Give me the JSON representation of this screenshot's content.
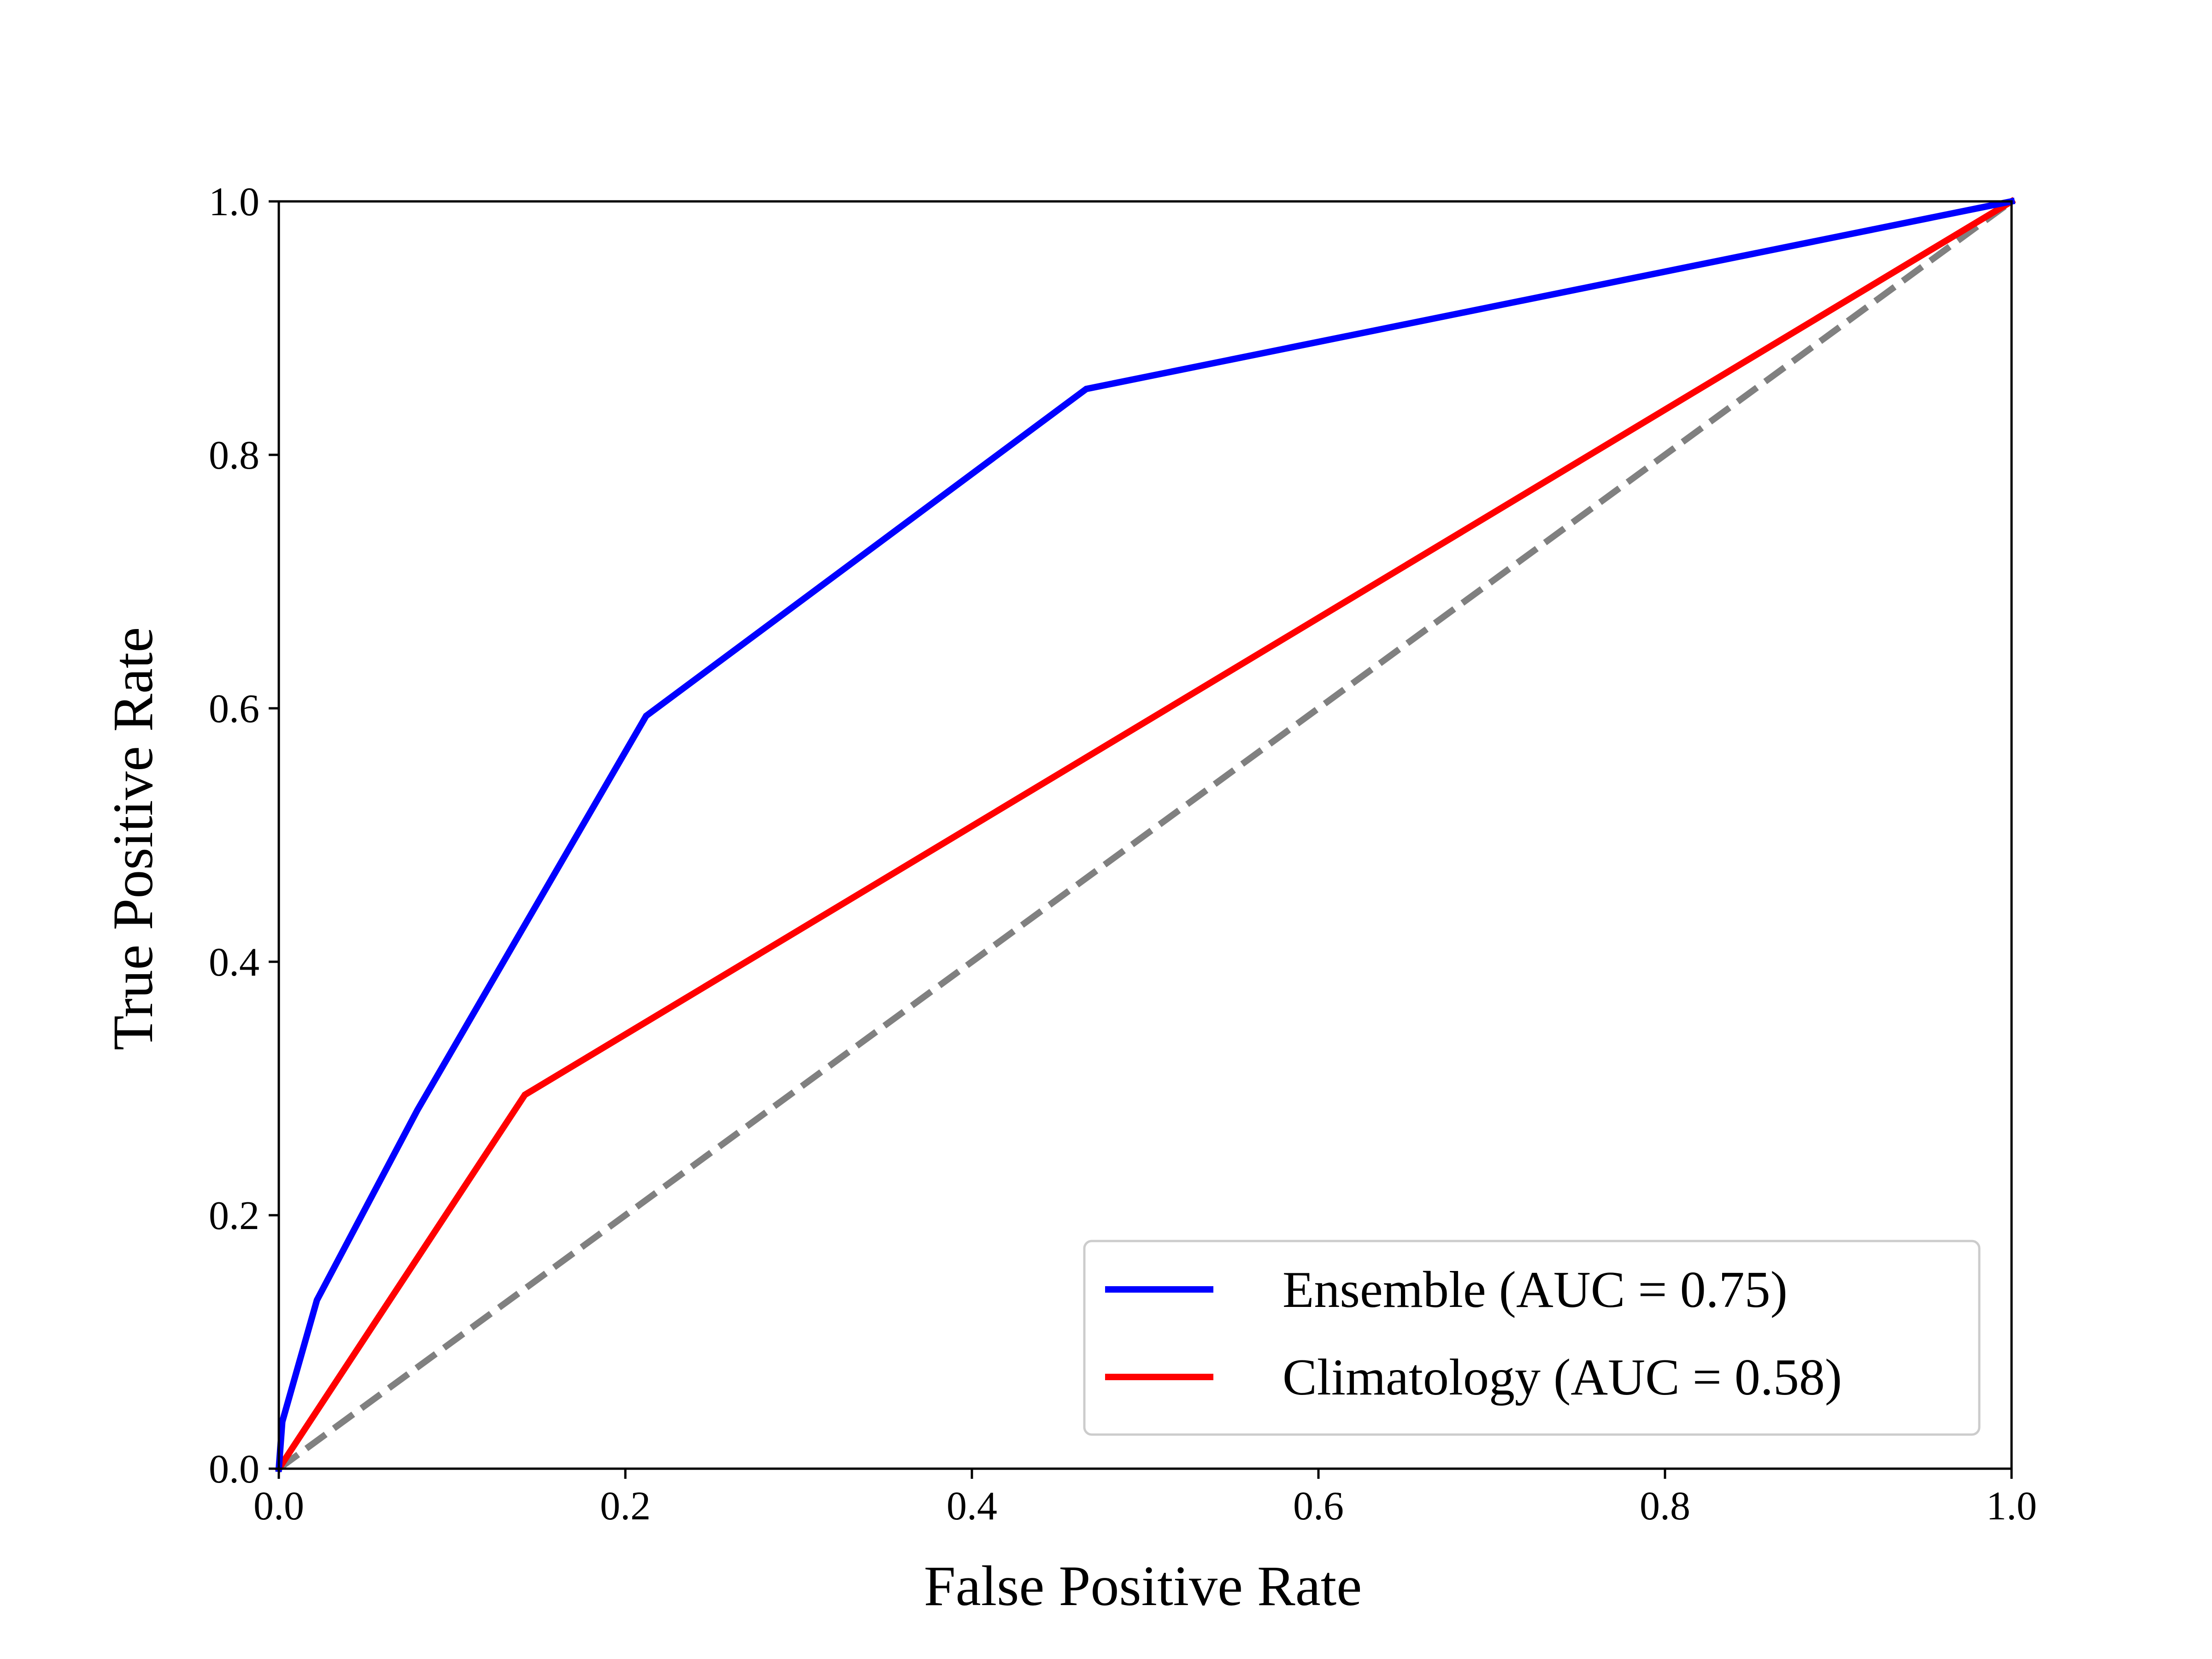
{
  "chart_data": {
    "type": "line",
    "title": "",
    "xlabel": "False Positive Rate",
    "ylabel": "True Positive Rate",
    "xlim": [
      0.0,
      1.0
    ],
    "ylim": [
      0.0,
      1.0
    ],
    "xticks": [
      "0.0",
      "0.2",
      "0.4",
      "0.6",
      "0.8",
      "1.0"
    ],
    "yticks": [
      "0.0",
      "0.2",
      "0.4",
      "0.6",
      "0.8",
      "1.0"
    ],
    "grid": false,
    "legend_position": "lower-right",
    "series": [
      {
        "name": "Ensemble (AUC = 0.75)",
        "color": "#0000ff",
        "style": "solid",
        "x": [
          0.0,
          0.002,
          0.022,
          0.08,
          0.212,
          0.466,
          1.0
        ],
        "y": [
          0.0,
          0.037,
          0.133,
          0.283,
          0.594,
          0.852,
          1.0
        ]
      },
      {
        "name": "Climatology (AUC = 0.58)",
        "color": "#ff0000",
        "style": "solid",
        "x": [
          0.0,
          0.142,
          1.0
        ],
        "y": [
          0.0,
          0.295,
          1.0
        ]
      }
    ],
    "reference_line": {
      "color": "#808080",
      "style": "dashed",
      "x": [
        0.0,
        1.0
      ],
      "y": [
        0.0,
        1.0
      ]
    }
  }
}
